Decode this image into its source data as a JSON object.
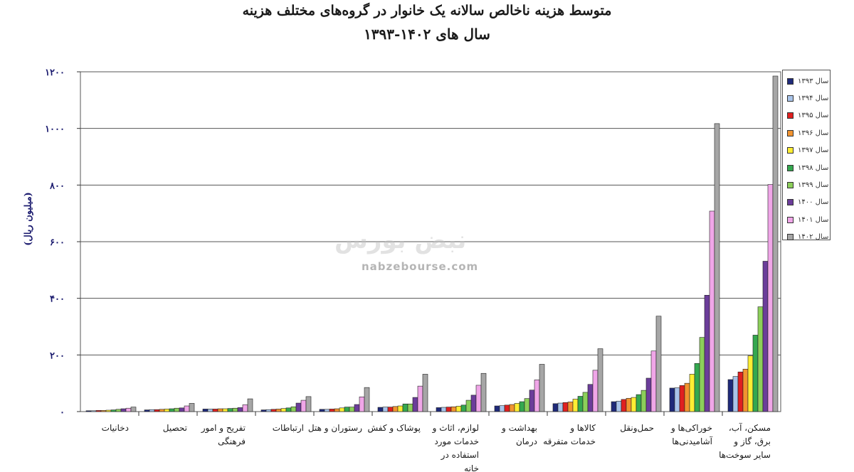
{
  "chart_data": {
    "type": "bar",
    "title": "متوسط هزینه ناخالص سالانه یک خانوار در گروه‌های مختلف هزینه",
    "subtitle": "سال های ۱۴۰۲-۱۳۹۳",
    "ylabel": "(میلیون ریال)",
    "ylim": [
      0,
      1200
    ],
    "yticks": [
      0,
      200,
      400,
      600,
      800,
      1000,
      1200
    ],
    "ytick_labels": [
      "۰",
      "۲۰۰",
      "۴۰۰",
      "۶۰۰",
      "۸۰۰",
      "۱۰۰۰",
      "۱۲۰۰"
    ],
    "grid": true,
    "legend_position": "right",
    "categories": [
      "دخانیات",
      "تحصیل",
      "تفریح و امور فرهنگی",
      "ارتباطات",
      "رستوران و هتل",
      "پوشاک و کفش",
      "لوازم، اثاث و خدمات مورد استفاده در خانه",
      "بهداشت و درمان",
      "کالاها و خدمات متفرقه",
      "حمل‌ونقل",
      "خوراکی‌ها و آشامیدنی‌ها",
      "مسکن، آب، برق، گاز و سایر سوخت‌ها"
    ],
    "series": [
      {
        "name": "سال ۱۳۹۳",
        "color": "#1f2a7a",
        "values": [
          3,
          6,
          9,
          6,
          8,
          15,
          14,
          20,
          28,
          35,
          83,
          113
        ]
      },
      {
        "name": "سال ۱۳۹۴",
        "color": "#a9c4ea",
        "values": [
          3,
          7,
          9,
          7,
          8,
          16,
          15,
          21,
          30,
          37,
          84,
          124
        ]
      },
      {
        "name": "سال ۱۳۹۵",
        "color": "#e02020",
        "values": [
          4,
          7,
          9,
          8,
          9,
          16,
          16,
          23,
          32,
          43,
          92,
          140
        ]
      },
      {
        "name": "سال ۱۳۹۶",
        "color": "#f29430",
        "values": [
          4,
          8,
          10,
          9,
          10,
          18,
          17,
          25,
          34,
          47,
          100,
          150
        ]
      },
      {
        "name": "سال ۱۳۹۷",
        "color": "#ffee33",
        "values": [
          5,
          9,
          10,
          11,
          13,
          20,
          19,
          29,
          44,
          50,
          132,
          197
        ]
      },
      {
        "name": "سال ۱۳۹۸",
        "color": "#34a84f",
        "values": [
          6,
          10,
          11,
          13,
          16,
          27,
          23,
          35,
          54,
          60,
          170,
          270
        ]
      },
      {
        "name": "سال ۱۳۹۹",
        "color": "#8ccf5a",
        "values": [
          8,
          12,
          12,
          17,
          16,
          27,
          40,
          46,
          68,
          75,
          262,
          370
        ]
      },
      {
        "name": "سال ۱۴۰۰",
        "color": "#6b3d9a",
        "values": [
          10,
          13,
          14,
          30,
          25,
          50,
          58,
          76,
          96,
          118,
          411,
          531
        ]
      },
      {
        "name": "سال ۱۴۰۱",
        "color": "#f0a6e8",
        "values": [
          12,
          20,
          24,
          40,
          52,
          90,
          93,
          112,
          146,
          214,
          708,
          802
        ]
      },
      {
        "name": "سال ۱۴۰۲",
        "color": "#a6a6a6",
        "values": [
          16,
          29,
          45,
          53,
          85,
          132,
          135,
          167,
          222,
          337,
          1017,
          1185
        ]
      }
    ]
  },
  "watermark": {
    "logo": "نبض بورس",
    "site": "nabzebourse.com"
  }
}
